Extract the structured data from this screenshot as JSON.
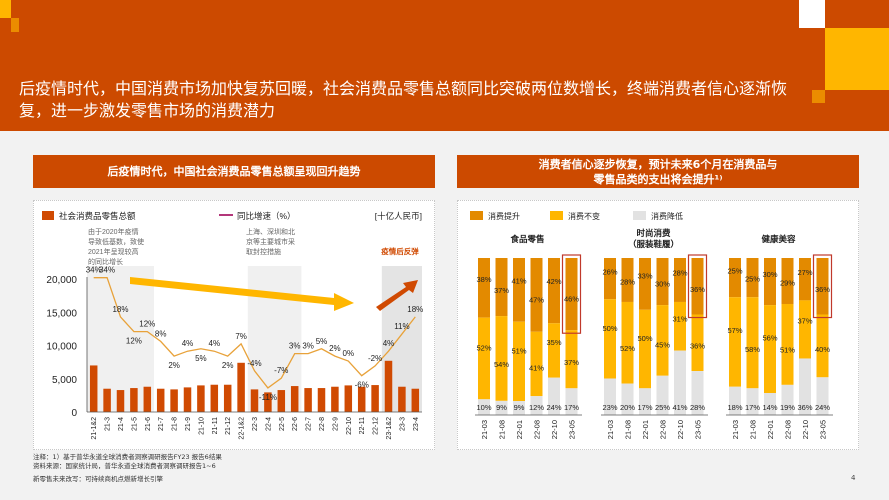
{
  "header": {
    "title": "后疫情时代，中国消费市场加快复苏回暖，社会消费品零售总额同比突破两位数增长，终端消费者信心逐渐恢复，进一步激发零售市场的消费潜力"
  },
  "left_panel": {
    "title": "后疫情时代，中国社会消费品零售总额呈现回升趋势",
    "legend_bar": "社会消费品零售总额",
    "legend_line": "同比增速（%）",
    "unit": "[十亿人民币]",
    "annotation_1": [
      "由于2020年疫情",
      "导致低基数，致使",
      "2021年呈现较高",
      "的同比增长"
    ],
    "annotation_2": [
      "上海、深圳和北",
      "京等主要城市采",
      "取封控措施"
    ],
    "annotation_3": "疫情后反弹"
  },
  "right_panel": {
    "title_line1": "消费者信心逐步恢复，预计未来6个月在消费品与",
    "title_line2": "零售品类的支出将会提升¹⁾",
    "legend": [
      "消费提升",
      "消费不变",
      "消费降低"
    ]
  },
  "colors": {
    "brand": "#cc4a00",
    "bar": "#d04a02",
    "line": "#e8a23a",
    "increase": "#e38a00",
    "same": "#ffb600",
    "decrease": "#e2e2e2",
    "highlight_box": "#c0392b",
    "arrow_yellow": "#ffb600",
    "arrow_red": "#d04a02"
  },
  "footer": {
    "note": "注释：1）基于普华永道全球消费者洞察调研报告FY23 报告6结果",
    "source": "资料来源：国家统计局，普华永道全球消费者洞察调研报告1~6",
    "report": "新零售未来改写：可持续商机点燃新增长引擎",
    "page": "4"
  },
  "chart_data": [
    {
      "type": "bar+line",
      "title": "后疫情时代，中国社会消费品零售总额呈现回升趋势",
      "categories": [
        "21-1&2",
        "21-3",
        "21-4",
        "21-5",
        "21-6",
        "21-7",
        "21-8",
        "21-9",
        "21-10",
        "21-11",
        "21-12",
        "22-1&2",
        "22-3",
        "22-4",
        "22-5",
        "22-6",
        "22-7",
        "22-8",
        "22-9",
        "22-10",
        "22-11",
        "22-12",
        "23-1&2",
        "23-3",
        "23-4"
      ],
      "series": [
        {
          "name": "社会消费品零售总额",
          "type": "bar",
          "axis": "left",
          "values": [
            7000,
            3500,
            3300,
            3600,
            3800,
            3500,
            3400,
            3700,
            4000,
            4100,
            4100,
            7400,
            3400,
            2950,
            3300,
            3900,
            3600,
            3600,
            3800,
            4000,
            3800,
            4050,
            7700,
            3800,
            3500
          ]
        },
        {
          "name": "同比增速（%）",
          "type": "line",
          "values": [
            34,
            34,
            18,
            12,
            12,
            8,
            2,
            4,
            5,
            4,
            2,
            7,
            -4,
            -11,
            -7,
            3,
            3,
            5,
            2,
            0,
            -6,
            -2,
            4,
            11,
            18
          ]
        }
      ],
      "ylim": [
        0,
        20000
      ],
      "yticks": [
        "0",
        "5,000",
        "10,000",
        "15,000",
        "20,000"
      ],
      "ylabel": "[十亿人民币]",
      "shaded_ranges": [
        [
          "21-1&2",
          "21-6"
        ],
        [
          "22-3",
          "22-6"
        ],
        [
          "23-1&2",
          "23-4"
        ]
      ]
    },
    {
      "type": "bar",
      "stacked": true,
      "title": "食品零售",
      "categories": [
        "21-03",
        "21-08",
        "22-01",
        "22-08",
        "22-10",
        "23-05"
      ],
      "series": [
        {
          "name": "消费提升",
          "values": [
            38,
            37,
            41,
            47,
            42,
            46
          ]
        },
        {
          "name": "消费不变",
          "values": [
            52,
            54,
            51,
            41,
            35,
            37
          ]
        },
        {
          "name": "消费降低",
          "values": [
            10,
            9,
            9,
            12,
            24,
            17
          ]
        }
      ],
      "highlight": "23-05"
    },
    {
      "type": "bar",
      "stacked": true,
      "title": "时尚消费（服装鞋履）",
      "title_lines": [
        "时尚消费",
        "（服装鞋履）"
      ],
      "categories": [
        "21-03",
        "21-08",
        "22-01",
        "22-08",
        "22-10",
        "23-05"
      ],
      "series": [
        {
          "name": "消费提升",
          "values": [
            26,
            28,
            33,
            30,
            28,
            36
          ]
        },
        {
          "name": "消费不变",
          "values": [
            50,
            52,
            50,
            45,
            31,
            36
          ]
        },
        {
          "name": "消费降低",
          "values": [
            23,
            20,
            17,
            25,
            41,
            28
          ]
        }
      ],
      "highlight": "23-05"
    },
    {
      "type": "bar",
      "stacked": true,
      "title": "健康美容",
      "categories": [
        "21-03",
        "21-08",
        "22-01",
        "22-08",
        "22-10",
        "23-05"
      ],
      "series": [
        {
          "name": "消费提升",
          "values": [
            25,
            25,
            30,
            29,
            27,
            36
          ]
        },
        {
          "name": "消费不变",
          "values": [
            57,
            58,
            56,
            51,
            37,
            40
          ]
        },
        {
          "name": "消费降低",
          "values": [
            18,
            17,
            14,
            19,
            36,
            24
          ]
        }
      ],
      "highlight": "23-05"
    }
  ]
}
